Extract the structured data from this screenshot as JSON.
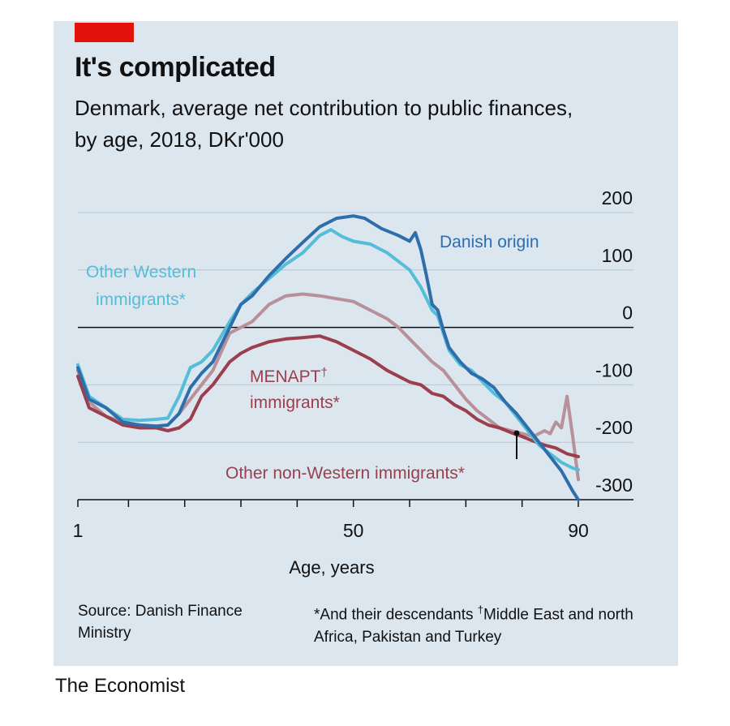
{
  "colors": {
    "background": "#dbe6ef",
    "brand": "#e3120b",
    "gridline": "#b7c6d1",
    "zero_line": "#111111",
    "danish_origin": "#2e6eab",
    "other_western": "#54bdd8",
    "other_non_western": "#b7909a",
    "menapt": "#9b3e4d"
  },
  "title": "It's complicated",
  "subtitle": "Denmark, average net contribution to public finances, by age, 2018, DKr'000",
  "source": "Source: Danish Finance Ministry",
  "footnote": {
    "star": "*And their descendants",
    "dagger_mark": "†",
    "dagger": "Middle East and north Africa, Pakistan and Turkey"
  },
  "publisher": "The Economist",
  "chart_data": {
    "type": "line",
    "title": "It's complicated",
    "xlabel": "Age, years",
    "ylabel": "DKr'000",
    "xlim": [
      0,
      91
    ],
    "ylim": [
      -300,
      200
    ],
    "x_ticks": [
      1,
      50,
      90
    ],
    "y_ticks": [
      200,
      100,
      0,
      -100,
      -200,
      -300
    ],
    "series": [
      {
        "name": "Danish origin",
        "label": "Danish origin",
        "color_key": "danish_origin",
        "points": [
          [
            1,
            -70
          ],
          [
            3,
            -125
          ],
          [
            6,
            -140
          ],
          [
            9,
            -165
          ],
          [
            12,
            -170
          ],
          [
            15,
            -172
          ],
          [
            17,
            -170
          ],
          [
            19,
            -150
          ],
          [
            21,
            -105
          ],
          [
            23,
            -80
          ],
          [
            25,
            -60
          ],
          [
            28,
            0
          ],
          [
            30,
            40
          ],
          [
            32,
            55
          ],
          [
            35,
            90
          ],
          [
            38,
            120
          ],
          [
            41,
            148
          ],
          [
            44,
            175
          ],
          [
            47,
            190
          ],
          [
            50,
            194
          ],
          [
            52,
            190
          ],
          [
            55,
            172
          ],
          [
            58,
            160
          ],
          [
            60,
            150
          ],
          [
            61,
            165
          ],
          [
            62,
            135
          ],
          [
            63,
            90
          ],
          [
            64,
            40
          ],
          [
            65,
            30
          ],
          [
            66,
            -5
          ],
          [
            67,
            -35
          ],
          [
            69,
            -60
          ],
          [
            71,
            -80
          ],
          [
            73,
            -90
          ],
          [
            75,
            -105
          ],
          [
            77,
            -130
          ],
          [
            79,
            -150
          ],
          [
            81,
            -175
          ],
          [
            83,
            -200
          ],
          [
            85,
            -225
          ],
          [
            87,
            -250
          ],
          [
            89,
            -285
          ],
          [
            90,
            -300
          ]
        ]
      },
      {
        "name": "Other Western immigrants*",
        "label_line1": "Other Western",
        "label_line2": "immigrants*",
        "color_key": "other_western",
        "points": [
          [
            1,
            -65
          ],
          [
            3,
            -120
          ],
          [
            6,
            -140
          ],
          [
            9,
            -160
          ],
          [
            12,
            -162
          ],
          [
            15,
            -160
          ],
          [
            17,
            -158
          ],
          [
            19,
            -120
          ],
          [
            21,
            -70
          ],
          [
            23,
            -60
          ],
          [
            25,
            -40
          ],
          [
            28,
            10
          ],
          [
            30,
            40
          ],
          [
            32,
            60
          ],
          [
            35,
            85
          ],
          [
            38,
            110
          ],
          [
            41,
            130
          ],
          [
            44,
            160
          ],
          [
            46,
            170
          ],
          [
            48,
            158
          ],
          [
            50,
            150
          ],
          [
            53,
            145
          ],
          [
            56,
            130
          ],
          [
            58,
            115
          ],
          [
            60,
            100
          ],
          [
            62,
            70
          ],
          [
            64,
            30
          ],
          [
            65,
            20
          ],
          [
            66,
            -10
          ],
          [
            67,
            -40
          ],
          [
            69,
            -65
          ],
          [
            71,
            -75
          ],
          [
            73,
            -95
          ],
          [
            75,
            -115
          ],
          [
            77,
            -130
          ],
          [
            79,
            -155
          ],
          [
            81,
            -180
          ],
          [
            83,
            -205
          ],
          [
            85,
            -220
          ],
          [
            87,
            -235
          ],
          [
            89,
            -245
          ],
          [
            90,
            -248
          ]
        ]
      },
      {
        "name": "Other non-Western immigrants*",
        "label": "Other non-Western immigrants*",
        "color_key": "other_non_western",
        "points": [
          [
            1,
            -75
          ],
          [
            3,
            -130
          ],
          [
            6,
            -155
          ],
          [
            9,
            -165
          ],
          [
            12,
            -170
          ],
          [
            15,
            -172
          ],
          [
            17,
            -170
          ],
          [
            19,
            -150
          ],
          [
            21,
            -125
          ],
          [
            23,
            -100
          ],
          [
            25,
            -75
          ],
          [
            28,
            -10
          ],
          [
            30,
            0
          ],
          [
            32,
            10
          ],
          [
            35,
            40
          ],
          [
            38,
            55
          ],
          [
            41,
            58
          ],
          [
            44,
            55
          ],
          [
            47,
            50
          ],
          [
            50,
            45
          ],
          [
            53,
            30
          ],
          [
            56,
            15
          ],
          [
            58,
            0
          ],
          [
            60,
            -20
          ],
          [
            62,
            -40
          ],
          [
            64,
            -60
          ],
          [
            66,
            -75
          ],
          [
            68,
            -100
          ],
          [
            70,
            -125
          ],
          [
            72,
            -145
          ],
          [
            74,
            -160
          ],
          [
            76,
            -175
          ],
          [
            78,
            -180
          ],
          [
            80,
            -185
          ],
          [
            82,
            -190
          ],
          [
            84,
            -180
          ],
          [
            85,
            -185
          ],
          [
            86,
            -165
          ],
          [
            87,
            -175
          ],
          [
            88,
            -120
          ],
          [
            89,
            -190
          ],
          [
            90,
            -265
          ]
        ]
      },
      {
        "name": "MENAPT† immigrants*",
        "label_line1": "MENAPT",
        "label_line2": "immigrants*",
        "color_key": "menapt",
        "points": [
          [
            1,
            -85
          ],
          [
            3,
            -140
          ],
          [
            6,
            -155
          ],
          [
            9,
            -170
          ],
          [
            12,
            -175
          ],
          [
            15,
            -175
          ],
          [
            17,
            -180
          ],
          [
            19,
            -175
          ],
          [
            21,
            -160
          ],
          [
            23,
            -120
          ],
          [
            25,
            -100
          ],
          [
            28,
            -60
          ],
          [
            30,
            -45
          ],
          [
            32,
            -35
          ],
          [
            35,
            -25
          ],
          [
            38,
            -20
          ],
          [
            41,
            -18
          ],
          [
            44,
            -15
          ],
          [
            47,
            -25
          ],
          [
            50,
            -40
          ],
          [
            53,
            -55
          ],
          [
            56,
            -75
          ],
          [
            58,
            -85
          ],
          [
            60,
            -95
          ],
          [
            62,
            -100
          ],
          [
            64,
            -115
          ],
          [
            66,
            -120
          ],
          [
            68,
            -135
          ],
          [
            70,
            -145
          ],
          [
            72,
            -160
          ],
          [
            74,
            -170
          ],
          [
            76,
            -175
          ],
          [
            78,
            -183
          ],
          [
            80,
            -190
          ],
          [
            82,
            -198
          ],
          [
            84,
            -205
          ],
          [
            86,
            -210
          ],
          [
            88,
            -220
          ],
          [
            90,
            -225
          ]
        ]
      }
    ],
    "annotations": [
      {
        "text": "MENAPT",
        "mark": "†"
      }
    ]
  }
}
